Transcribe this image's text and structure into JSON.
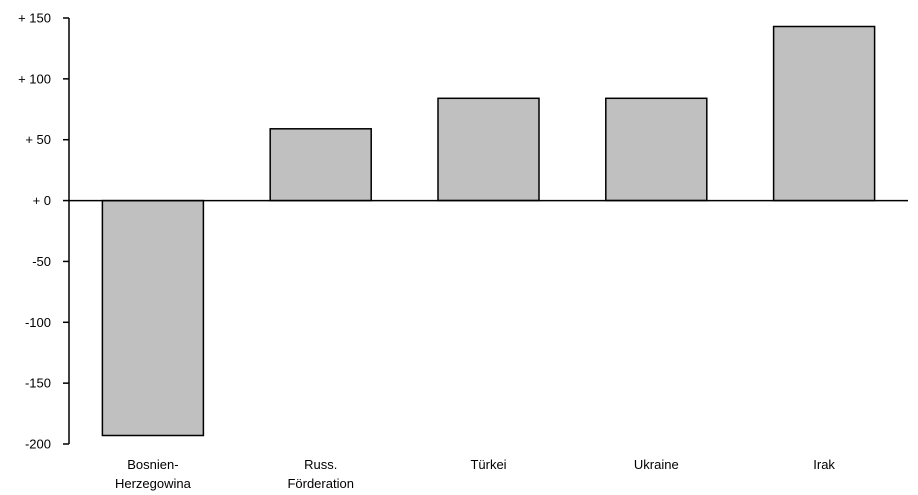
{
  "chart_data": {
    "type": "bar",
    "categories": [
      [
        "Bosnien-",
        "Herzegowina"
      ],
      [
        "Russ.",
        "Förderation"
      ],
      [
        "Türkei"
      ],
      [
        "Ukraine"
      ],
      [
        "Irak"
      ]
    ],
    "values": [
      -193,
      59,
      84,
      84,
      143
    ],
    "yticks": [
      "+ 150",
      "+ 100",
      "+ 50",
      "+ 0",
      "-50",
      "-100",
      "-150",
      "-200"
    ],
    "ytick_values": [
      150,
      100,
      50,
      0,
      -50,
      -100,
      -150,
      -200
    ],
    "ylim": [
      -200,
      150
    ],
    "title": "",
    "xlabel": "",
    "ylabel": "",
    "grid": false,
    "colors": {
      "bar_fill": "#c0c0c0",
      "bar_stroke": "#000000",
      "axis": "#000000"
    }
  }
}
